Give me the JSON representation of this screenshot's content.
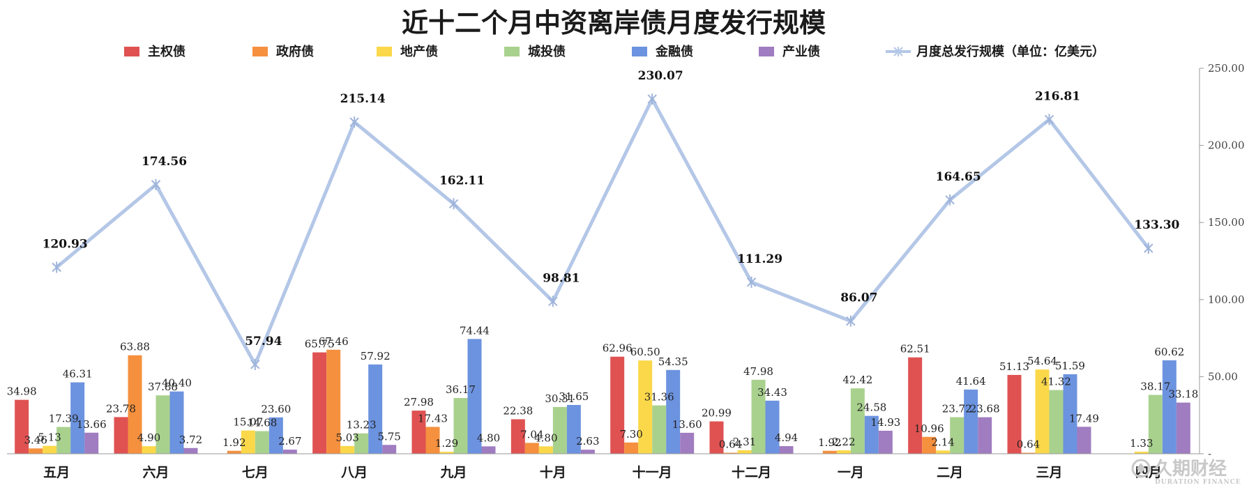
{
  "chart_data": {
    "type": "bar",
    "title": "近十二个月中资离岸债月度发行规模",
    "categories": [
      "五月",
      "六月",
      "七月",
      "八月",
      "九月",
      "十月",
      "十一月",
      "十二月",
      "一月",
      "二月",
      "三月",
      "四月"
    ],
    "series": [
      {
        "name": "主权债",
        "color": "#e05252",
        "values": [
          34.98,
          23.78,
          null,
          65.75,
          27.98,
          22.38,
          62.96,
          20.99,
          null,
          62.51,
          51.13,
          null
        ],
        "labels": [
          "34.98",
          "23.78",
          "",
          "65.75",
          "27.98",
          "22.38",
          "62.96",
          "20.99",
          "",
          "62.51",
          "51.13",
          ""
        ]
      },
      {
        "name": "政府债",
        "color": "#f5903e",
        "values": [
          3.46,
          63.88,
          1.92,
          67.46,
          17.43,
          7.04,
          7.3,
          0.64,
          1.92,
          10.96,
          0.64,
          null
        ],
        "labels": [
          "3.46",
          "63.88",
          "1.92",
          "67.46",
          "17.43",
          "7.04",
          "7.30",
          "0.64",
          "1.92",
          "10.96",
          "0.64",
          ""
        ]
      },
      {
        "name": "地产债",
        "color": "#fbd84a",
        "values": [
          5.13,
          4.9,
          15.07,
          5.03,
          1.29,
          4.8,
          60.5,
          2.31,
          2.22,
          2.14,
          54.64,
          1.33
        ],
        "labels": [
          "5.13",
          "4.90",
          "15.07",
          "5.03",
          "1.29",
          "4.80",
          "60.50",
          "2.31",
          "2.22",
          "2.14",
          "54.64",
          "1.33"
        ]
      },
      {
        "name": "城投债",
        "color": "#a9d18e",
        "values": [
          17.39,
          37.88,
          14.68,
          13.23,
          36.17,
          30.31,
          31.36,
          47.98,
          42.42,
          23.72,
          41.32,
          38.17
        ],
        "labels": [
          "17.39",
          "37.88",
          "14.68",
          "13.23",
          "36.17",
          "30.31",
          "31.36",
          "47.98",
          "42.42",
          "23.72",
          "41.32",
          "38.17"
        ]
      },
      {
        "name": "金融债",
        "color": "#6c93df",
        "values": [
          46.31,
          40.4,
          23.6,
          57.92,
          74.44,
          31.65,
          54.35,
          34.43,
          24.58,
          41.64,
          51.59,
          60.62
        ],
        "labels": [
          "46.31",
          "40.40",
          "23.60",
          "57.92",
          "74.44",
          "31.65",
          "54.35",
          "34.43",
          "24.58",
          "41.64",
          "51.59",
          "60.62"
        ]
      },
      {
        "name": "产业债",
        "color": "#a07cc0",
        "values": [
          13.66,
          3.72,
          2.67,
          5.75,
          4.8,
          2.63,
          13.6,
          4.94,
          14.93,
          23.68,
          17.49,
          33.18
        ],
        "labels": [
          "13.66",
          "3.72",
          "2.67",
          "5.75",
          "4.80",
          "2.63",
          "13.60",
          "4.94",
          "14.93",
          "23.68",
          "17.49",
          "33.18"
        ]
      }
    ],
    "line_series": {
      "name": "月度总发行规模（单位：亿美元）",
      "color": "#b4c7e7",
      "values": [
        120.93,
        174.56,
        57.94,
        215.14,
        162.11,
        98.81,
        230.07,
        111.29,
        86.07,
        164.65,
        216.81,
        133.3
      ],
      "labels": [
        "120.93",
        "174.56",
        "57.94",
        "215.14",
        "162.11",
        "98.81",
        "230.07",
        "111.29",
        "86.07",
        "164.65",
        "216.81",
        "133.30"
      ]
    },
    "y_axis": {
      "position": "right",
      "ylim": [
        0,
        250
      ],
      "ticks": [
        0,
        50,
        100,
        150,
        200,
        250
      ],
      "tick_labels": [
        "-",
        "50.00",
        "100.00",
        "150.00",
        "200.00",
        "250.00"
      ]
    },
    "legend_position": "top",
    "grid": false
  },
  "watermark": {
    "text": "久期财经",
    "sub": "DURATION FINANCE"
  }
}
